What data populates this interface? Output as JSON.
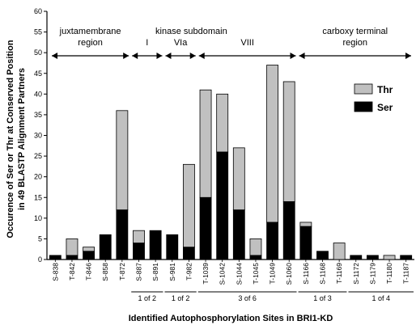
{
  "chart_data": {
    "type": "bar",
    "stacked": true,
    "xlabel": "Identified Autophosphorylation Sites in BRI1-KD",
    "ylabel": "Occurence of Ser or Thr at Conserved Position in 49 BLASTP Alignment Partners",
    "ylabel_lines": [
      "Occurence of Ser or Thr at Conserved Position",
      "in 49 BLASTP Alignment Partners"
    ],
    "ylim": [
      0,
      60
    ],
    "yticks": [
      0,
      5,
      10,
      15,
      20,
      25,
      30,
      35,
      40,
      45,
      50,
      55,
      60
    ],
    "grid": false,
    "legend_position": "right",
    "categories": [
      "S-838",
      "T-842",
      "T-846",
      "S-858",
      "T-872",
      "S-887",
      "S-891",
      "S-981",
      "T-982",
      "T-1039",
      "S-1042",
      "S-1044",
      "T-1045",
      "T-1049",
      "S-1060",
      "S-1166",
      "S-1168",
      "T-1169",
      "S-1172",
      "S-1179",
      "T-1180",
      "T-1187"
    ],
    "series": [
      {
        "name": "Ser",
        "color": "#000000",
        "values": [
          1,
          1,
          2,
          6,
          12,
          4,
          7,
          6,
          3,
          15,
          26,
          12,
          1,
          9,
          14,
          8,
          2,
          0,
          1,
          1,
          0,
          1
        ]
      },
      {
        "name": "Thr",
        "color": "#c0c0c0",
        "values": [
          0,
          4,
          1,
          0,
          24,
          3,
          0,
          0,
          20,
          26,
          14,
          15,
          4,
          38,
          29,
          1,
          0,
          4,
          0,
          0,
          1,
          0
        ]
      }
    ],
    "regions": [
      {
        "label_lines": [
          "juxtamembrane",
          "region"
        ],
        "from": 0,
        "to": 4
      },
      {
        "label_lines": [
          "I"
        ],
        "from": 5,
        "to": 6
      },
      {
        "label_lines": [
          "VIa"
        ],
        "from": 7,
        "to": 8
      },
      {
        "label_lines": [
          "VIII"
        ],
        "from": 9,
        "to": 14
      },
      {
        "label_lines": [
          "carboxy terminal",
          "region"
        ],
        "from": 15,
        "to": 21
      }
    ],
    "region_header": "kinase subdomain",
    "groups": [
      {
        "label": "1 of 2",
        "from": 5,
        "to": 6
      },
      {
        "label": "1 of 2",
        "from": 7,
        "to": 8
      },
      {
        "label": "3 of 6",
        "from": 9,
        "to": 14
      },
      {
        "label": "1 of 3",
        "from": 15,
        "to": 17
      },
      {
        "label": "1 of 4",
        "from": 18,
        "to": 21
      }
    ]
  }
}
